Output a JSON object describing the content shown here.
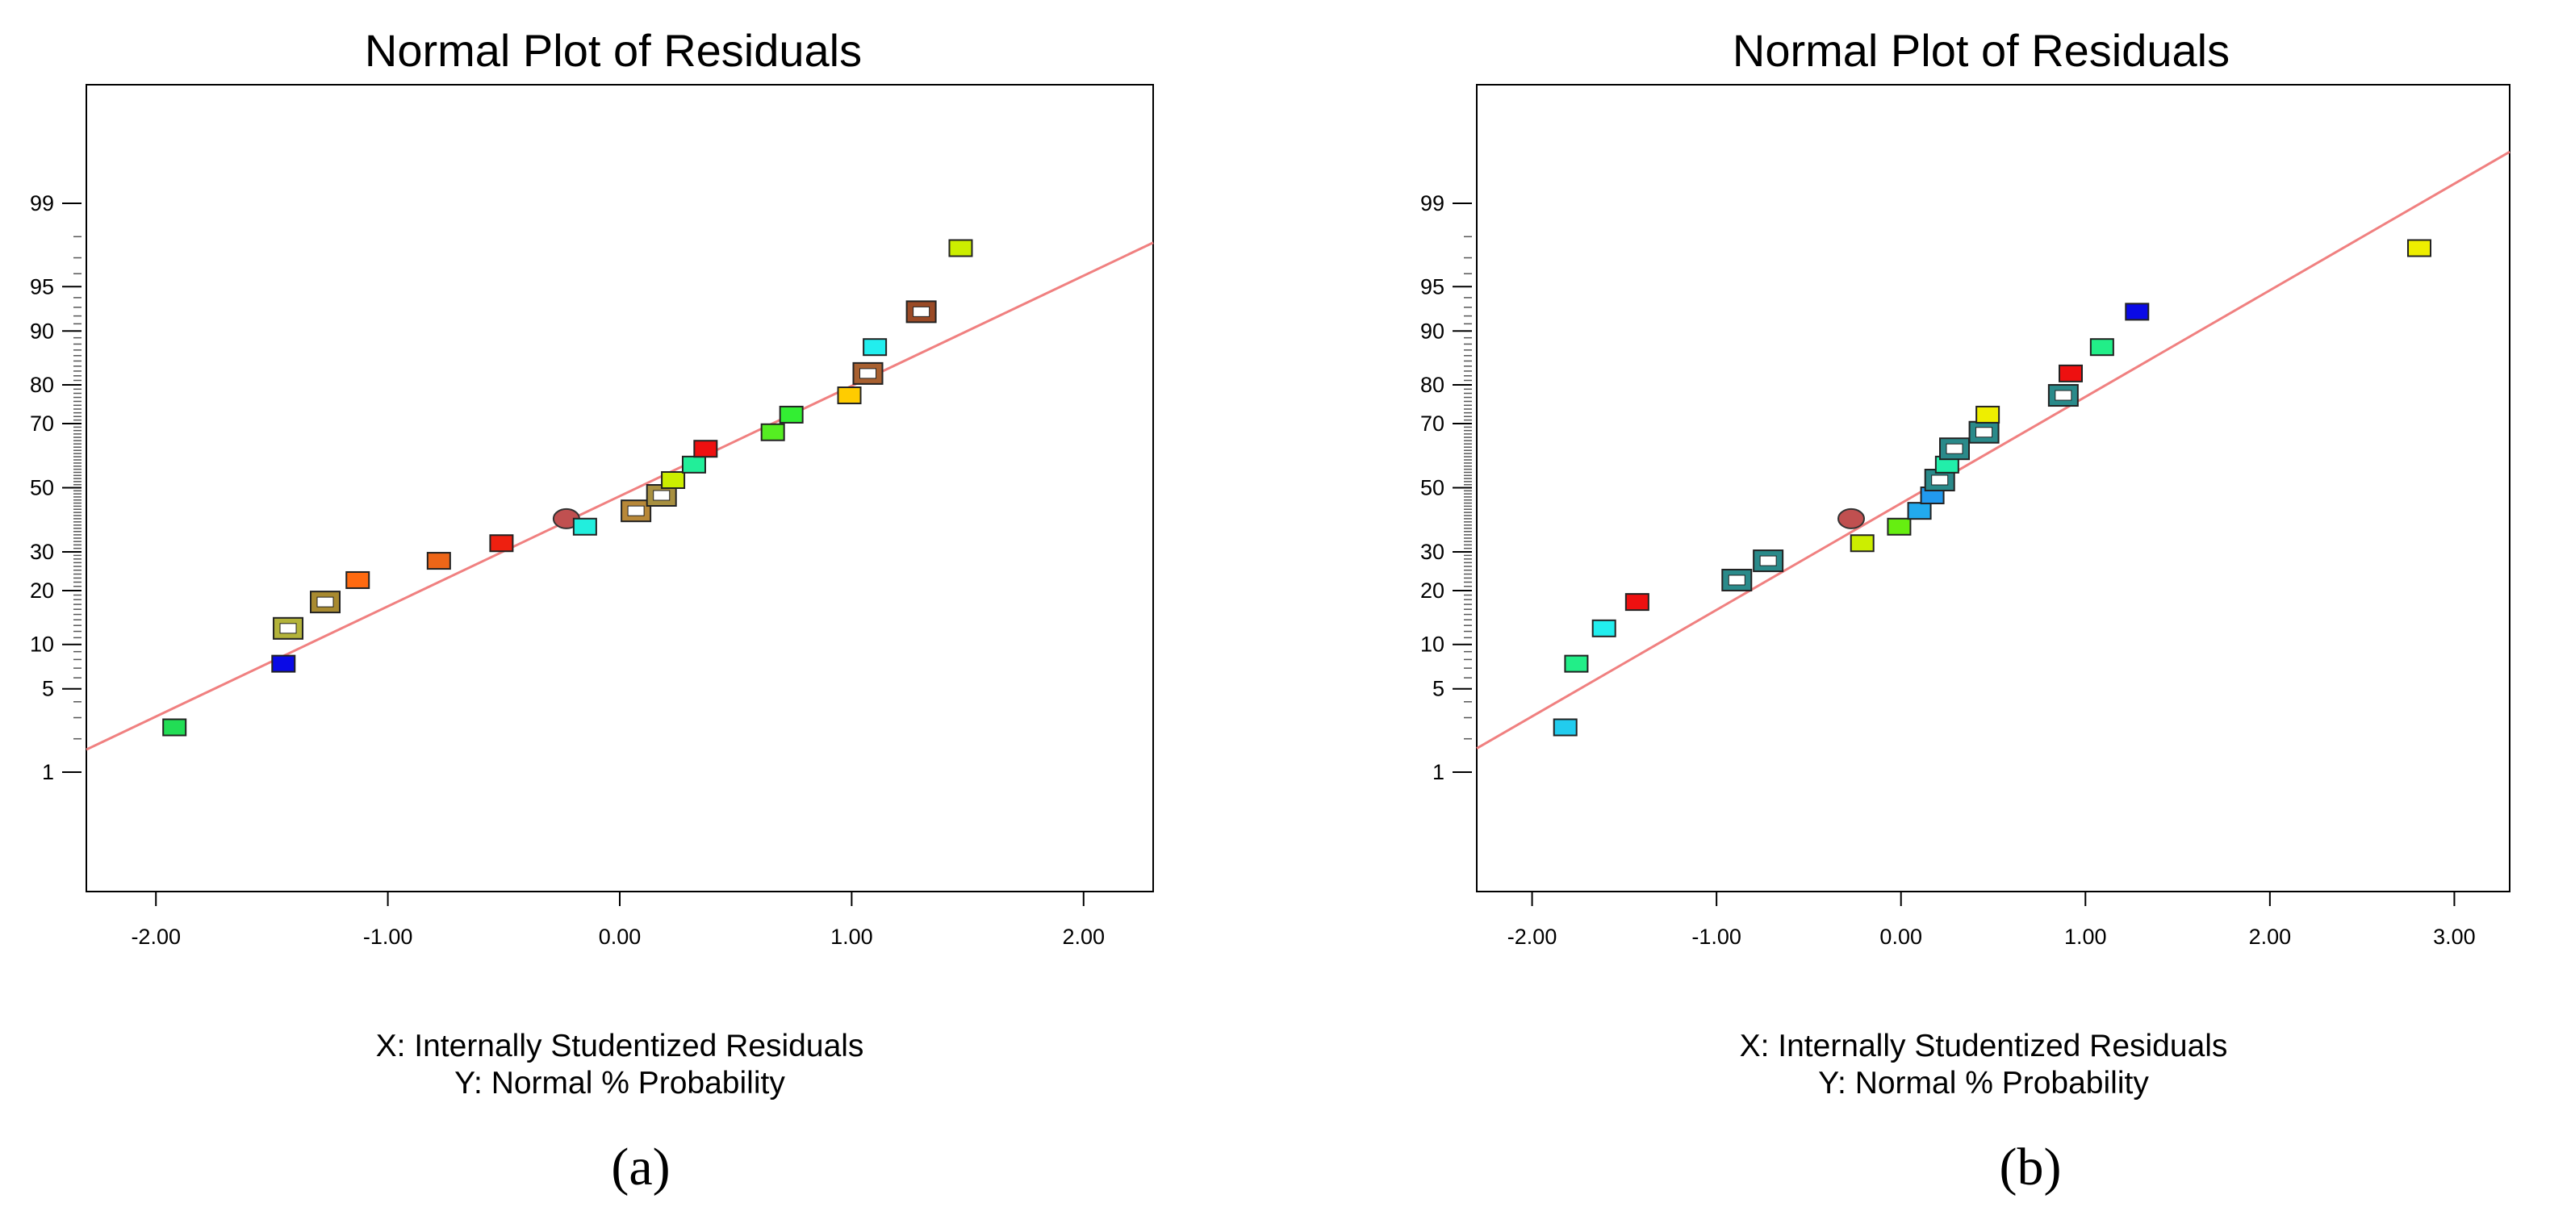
{
  "chart_data": [
    {
      "type": "scatter",
      "panel_label": "(a)",
      "title": "Normal Plot of Residuals",
      "xlabel": "X: Internally Studentized Residuals",
      "ylabel": "Y: Normal % Probability",
      "xlim": [
        -2.3,
        2.3
      ],
      "xticks": [
        "-2.00",
        "-1.00",
        "0.00",
        "1.00",
        "2.00"
      ],
      "yticks": [
        "1",
        "5",
        "10",
        "20",
        "30",
        "50",
        "70",
        "80",
        "90",
        "95",
        "99"
      ],
      "reference_line": {
        "color": "#f08080",
        "x": [
          -2.3,
          2.3
        ],
        "p": [
          1.61,
          97.75
        ]
      },
      "points": [
        {
          "x": -1.92,
          "p": 2.5,
          "color": "#22dd55",
          "marker": "filled"
        },
        {
          "x": -1.45,
          "p": 7.5,
          "color": "#0a0ae6",
          "marker": "filled"
        },
        {
          "x": -1.43,
          "p": 12.5,
          "color": "#b3b33a",
          "marker": "double"
        },
        {
          "x": -1.27,
          "p": 17.5,
          "color": "#a88a30",
          "marker": "double"
        },
        {
          "x": -1.13,
          "p": 22.5,
          "color": "#ff6a10",
          "marker": "filled"
        },
        {
          "x": -0.78,
          "p": 27.5,
          "color": "#ee6618",
          "marker": "filled"
        },
        {
          "x": -0.51,
          "p": 32.5,
          "color": "#ee2010",
          "marker": "filled"
        },
        {
          "x": -0.23,
          "p": 40.0,
          "color": "#c05050",
          "marker": "circle"
        },
        {
          "x": -0.15,
          "p": 37.5,
          "color": "#22eedd",
          "marker": "filled"
        },
        {
          "x": 0.07,
          "p": 42.5,
          "color": "#b88838",
          "marker": "double"
        },
        {
          "x": 0.18,
          "p": 47.5,
          "color": "#a89040",
          "marker": "double"
        },
        {
          "x": 0.23,
          "p": 52.5,
          "color": "#ccee00",
          "marker": "filled"
        },
        {
          "x": 0.32,
          "p": 57.5,
          "color": "#22ee99",
          "marker": "filled"
        },
        {
          "x": 0.37,
          "p": 62.5,
          "color": "#ee1010",
          "marker": "filled"
        },
        {
          "x": 0.66,
          "p": 67.5,
          "color": "#55ee22",
          "marker": "filled"
        },
        {
          "x": 0.74,
          "p": 72.5,
          "color": "#33ee33",
          "marker": "filled"
        },
        {
          "x": 0.99,
          "p": 77.5,
          "color": "#ffcc00",
          "marker": "filled"
        },
        {
          "x": 1.07,
          "p": 82.5,
          "color": "#a86030",
          "marker": "double"
        },
        {
          "x": 1.1,
          "p": 87.5,
          "color": "#22eeee",
          "marker": "filled"
        },
        {
          "x": 1.3,
          "p": 92.5,
          "color": "#9a4a26",
          "marker": "double"
        },
        {
          "x": 1.47,
          "p": 97.5,
          "color": "#ccee00",
          "marker": "filled"
        }
      ]
    },
    {
      "type": "scatter",
      "panel_label": "(b)",
      "title": "Normal Plot of Residuals",
      "xlabel": "X: Internally Studentized Residuals",
      "ylabel": "Y: Normal % Probability",
      "xlim": [
        -2.3,
        3.3
      ],
      "xticks": [
        "-2.00",
        "-1.00",
        "0.00",
        "1.00",
        "2.00",
        "3.00"
      ],
      "yticks": [
        "1",
        "5",
        "10",
        "20",
        "30",
        "50",
        "70",
        "80",
        "90",
        "95",
        "99"
      ],
      "reference_line": {
        "color": "#f08080",
        "x": [
          -2.3,
          3.3
        ],
        "p": [
          1.65,
          99.7
        ]
      },
      "points": [
        {
          "x": -1.82,
          "p": 2.5,
          "color": "#22ccee",
          "marker": "filled"
        },
        {
          "x": -1.76,
          "p": 7.5,
          "color": "#22ee88",
          "marker": "filled"
        },
        {
          "x": -1.61,
          "p": 12.5,
          "color": "#22eeee",
          "marker": "filled"
        },
        {
          "x": -1.43,
          "p": 17.5,
          "color": "#ee1010",
          "marker": "filled"
        },
        {
          "x": -0.89,
          "p": 22.5,
          "color": "#2a8a8a",
          "marker": "double"
        },
        {
          "x": -0.72,
          "p": 27.5,
          "color": "#2a8a8a",
          "marker": "double"
        },
        {
          "x": -0.27,
          "p": 40.0,
          "color": "#c05050",
          "marker": "circle"
        },
        {
          "x": -0.21,
          "p": 32.5,
          "color": "#ccee00",
          "marker": "filled"
        },
        {
          "x": -0.01,
          "p": 37.5,
          "color": "#66ee11",
          "marker": "filled"
        },
        {
          "x": 0.1,
          "p": 42.5,
          "color": "#22aaee",
          "marker": "filled"
        },
        {
          "x": 0.17,
          "p": 47.5,
          "color": "#2299ee",
          "marker": "filled"
        },
        {
          "x": 0.21,
          "p": 52.5,
          "color": "#2a8a8a",
          "marker": "double"
        },
        {
          "x": 0.25,
          "p": 57.5,
          "color": "#22eeaa",
          "marker": "filled"
        },
        {
          "x": 0.29,
          "p": 62.5,
          "color": "#2a8a8a",
          "marker": "double"
        },
        {
          "x": 0.45,
          "p": 67.5,
          "color": "#2a8a8a",
          "marker": "double"
        },
        {
          "x": 0.47,
          "p": 72.5,
          "color": "#eeee00",
          "marker": "filled"
        },
        {
          "x": 0.88,
          "p": 77.5,
          "color": "#2a8a8a",
          "marker": "double"
        },
        {
          "x": 0.92,
          "p": 82.5,
          "color": "#ee1010",
          "marker": "filled"
        },
        {
          "x": 1.09,
          "p": 87.5,
          "color": "#22ee88",
          "marker": "filled"
        },
        {
          "x": 1.28,
          "p": 92.5,
          "color": "#0a0ae6",
          "marker": "filled"
        },
        {
          "x": 2.81,
          "p": 97.5,
          "color": "#eeee00",
          "marker": "filled"
        }
      ]
    }
  ]
}
